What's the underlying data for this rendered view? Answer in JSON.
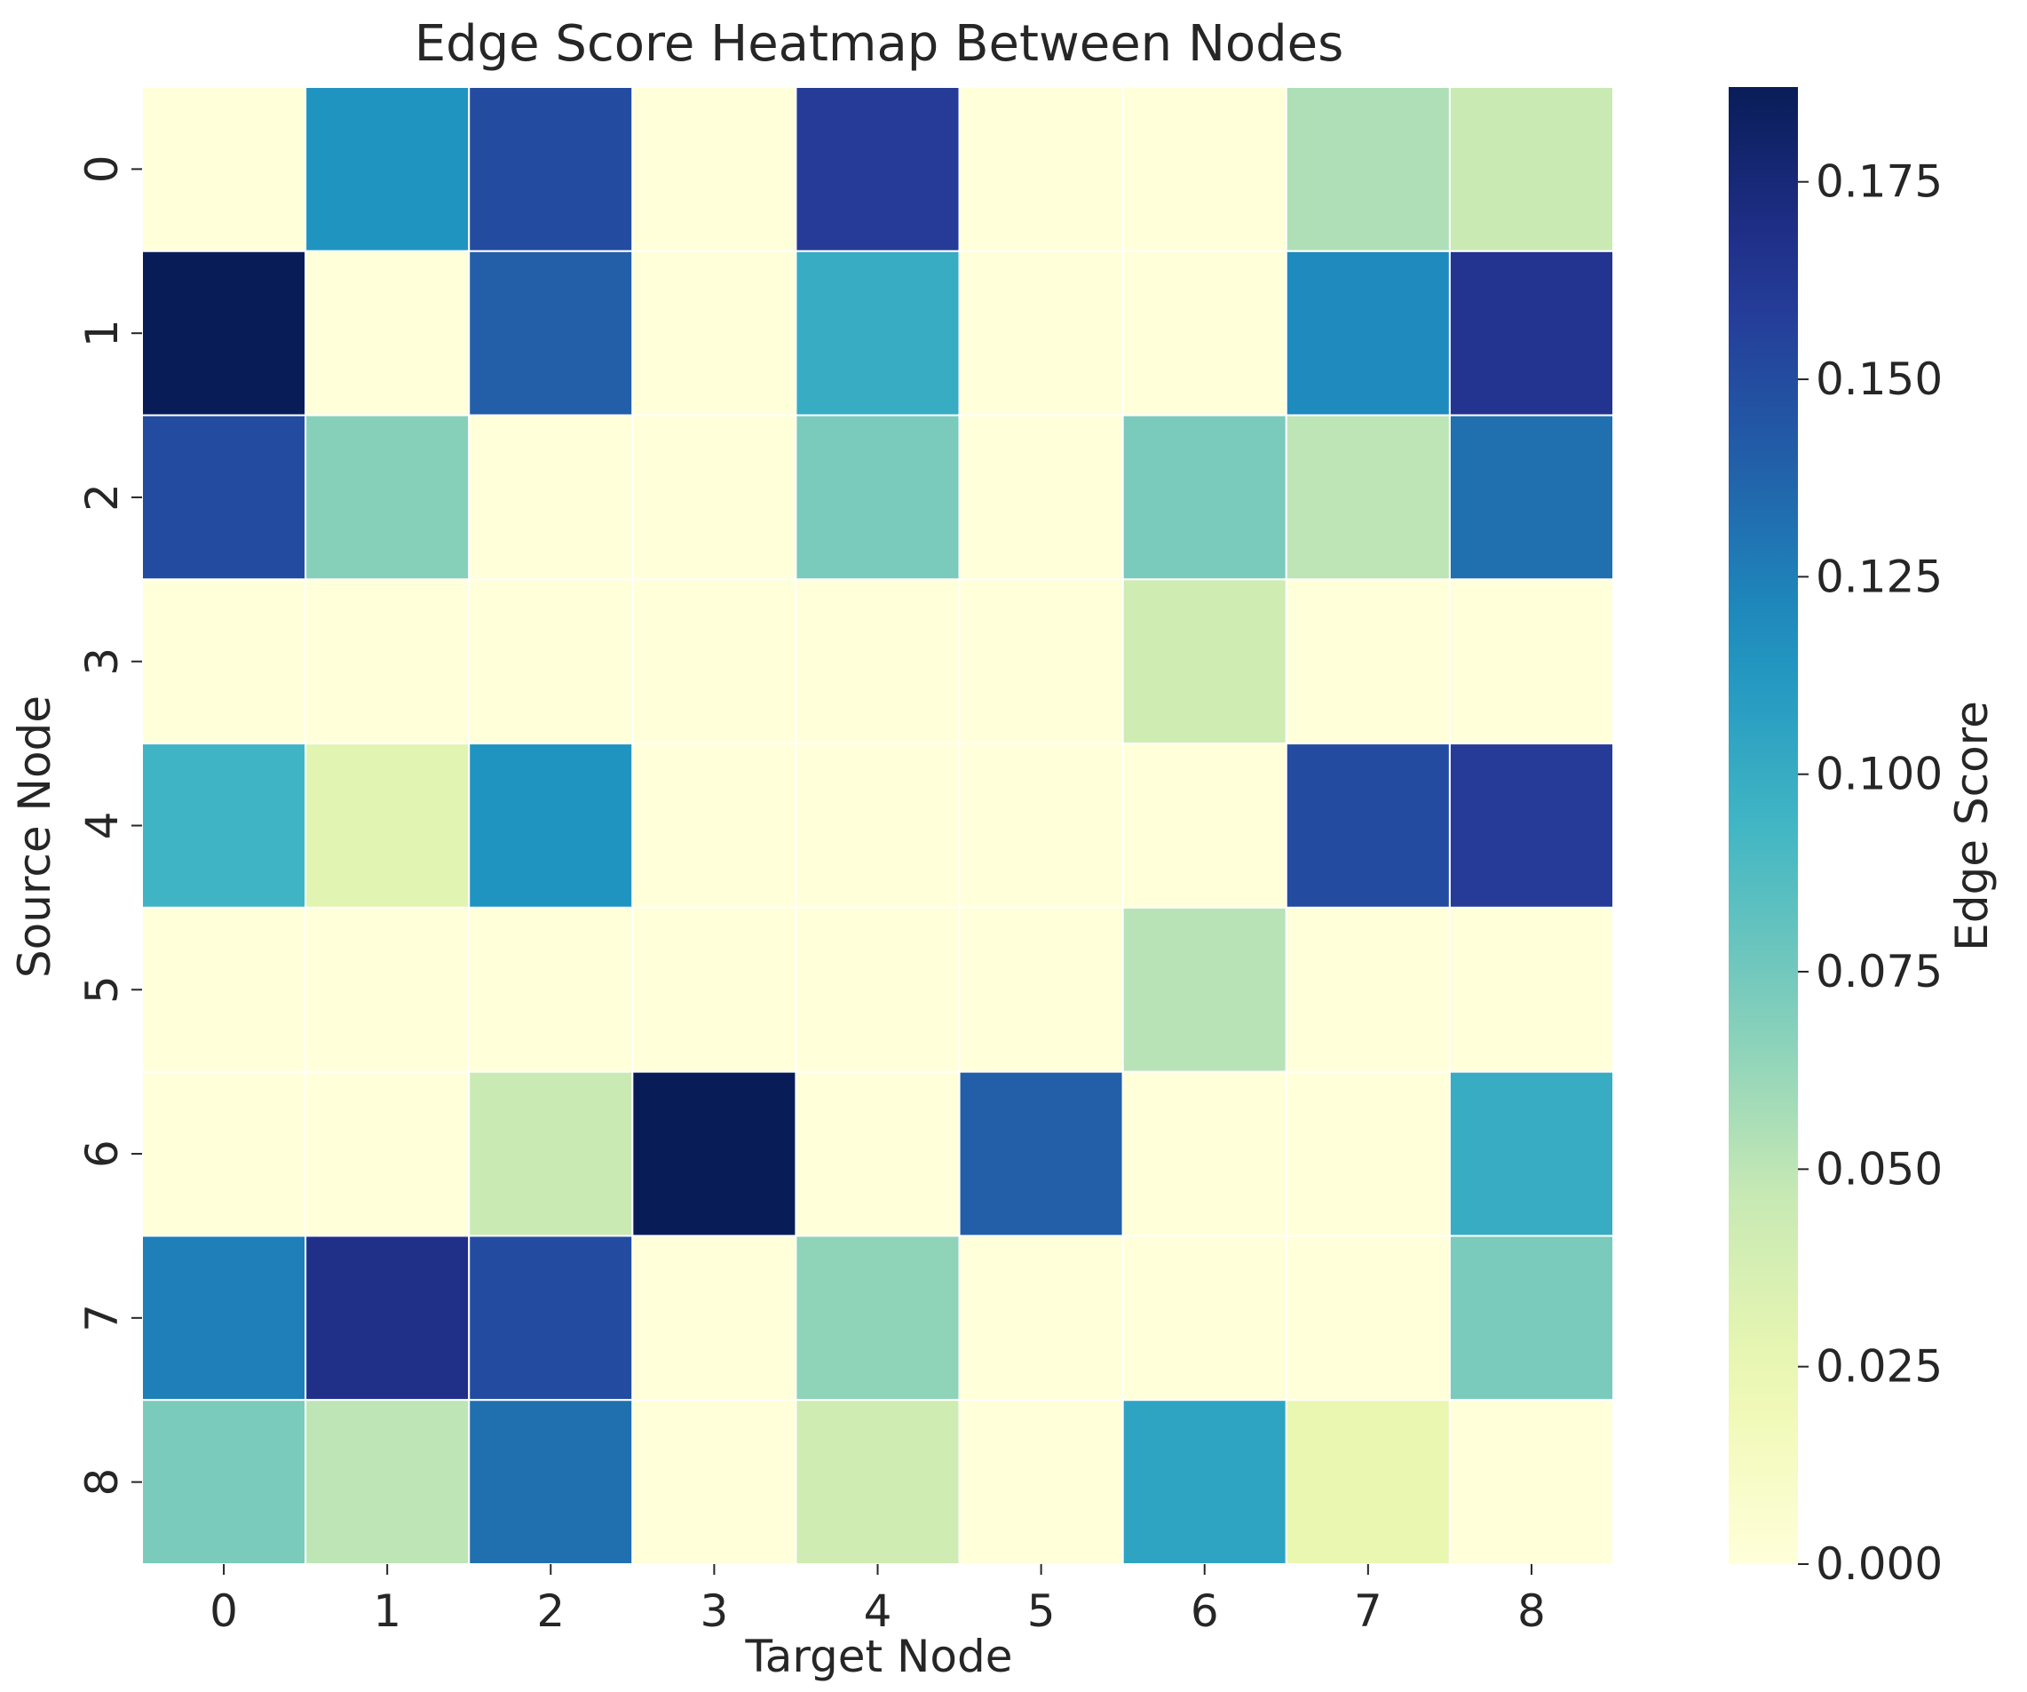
{
  "chart_data": {
    "type": "heatmap",
    "title": "Edge Score Heatmap Between Nodes",
    "xlabel": "Target Node",
    "ylabel": "Source Node",
    "x_categories": [
      "0",
      "1",
      "2",
      "3",
      "4",
      "5",
      "6",
      "7",
      "8"
    ],
    "y_categories": [
      "0",
      "1",
      "2",
      "3",
      "4",
      "5",
      "6",
      "7",
      "8"
    ],
    "values": [
      [
        0.0,
        0.115,
        0.15,
        0.0,
        0.16,
        0.0,
        0.0,
        0.055,
        0.045
      ],
      [
        0.187,
        0.0,
        0.14,
        0.0,
        0.1,
        0.0,
        0.0,
        0.12,
        0.165
      ],
      [
        0.15,
        0.068,
        0.0,
        0.0,
        0.072,
        0.0,
        0.072,
        0.05,
        0.132
      ],
      [
        0.0,
        0.0,
        0.0,
        0.0,
        0.0,
        0.0,
        0.042,
        0.0,
        0.0
      ],
      [
        0.095,
        0.03,
        0.115,
        0.0,
        0.0,
        0.0,
        0.0,
        0.15,
        0.16
      ],
      [
        0.0,
        0.0,
        0.0,
        0.0,
        0.0,
        0.0,
        0.052,
        0.0,
        0.0
      ],
      [
        0.0,
        0.0,
        0.045,
        0.187,
        0.0,
        0.14,
        0.0,
        0.0,
        0.1
      ],
      [
        0.125,
        0.168,
        0.15,
        0.0,
        0.065,
        0.0,
        0.0,
        0.0,
        0.072
      ],
      [
        0.072,
        0.05,
        0.132,
        0.0,
        0.042,
        0.0,
        0.105,
        0.025,
        0.0
      ]
    ],
    "colormap": "YlGnBu",
    "colorbar": {
      "label": "Edge Score",
      "range": [
        0.0,
        0.187
      ],
      "ticks": [
        0.0,
        0.025,
        0.05,
        0.075,
        0.1,
        0.125,
        0.15,
        0.175
      ],
      "tick_labels": [
        "0.000",
        "0.025",
        "0.050",
        "0.075",
        "0.100",
        "0.125",
        "0.150",
        "0.175"
      ]
    },
    "grid": false,
    "cell_border_color": "#ffffff"
  }
}
